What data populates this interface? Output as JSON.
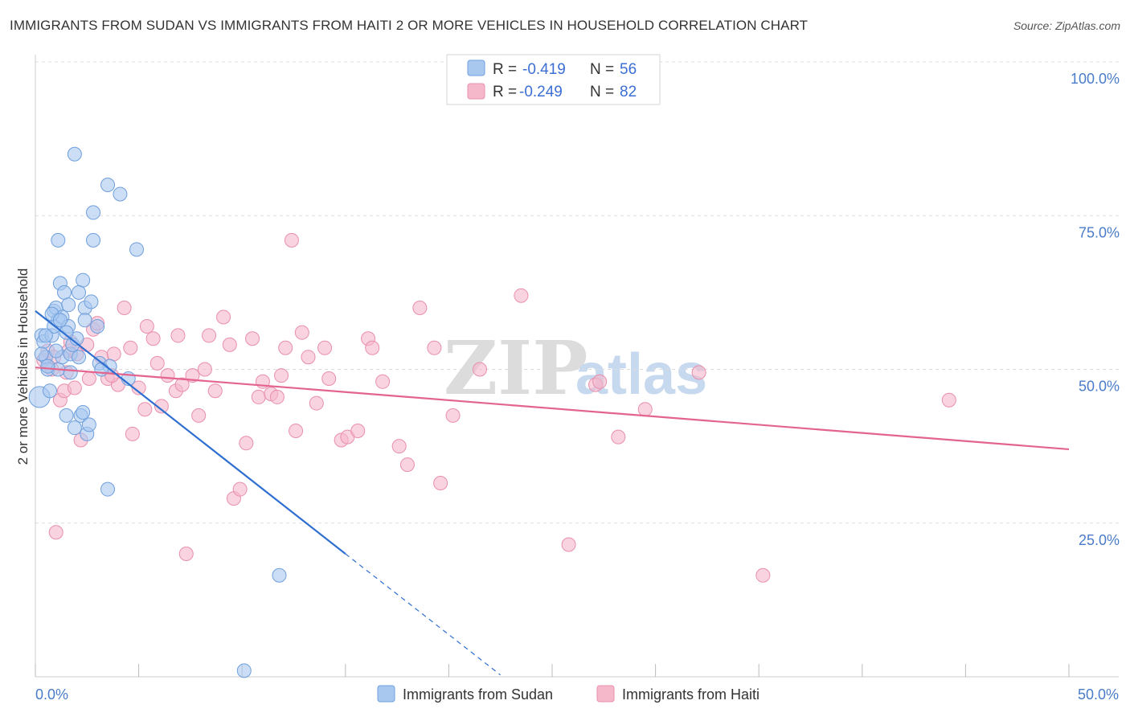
{
  "header": {
    "title": "IMMIGRANTS FROM SUDAN VS IMMIGRANTS FROM HAITI 2 OR MORE VEHICLES IN HOUSEHOLD CORRELATION CHART",
    "source": "Source: ZipAtlas.com"
  },
  "watermark": {
    "zip": "ZIP",
    "atlas": "atlas"
  },
  "legend": {
    "r_label": "R =",
    "n_label": "N =",
    "sudan": {
      "r": "-0.419",
      "n": "56"
    },
    "haiti": {
      "r": "-0.249",
      "n": "82"
    }
  },
  "colors": {
    "sudan_fill": "#a9c8f0",
    "sudan_stroke": "#6f9fdc",
    "sudan_line": "#2f6fd0",
    "haiti_fill": "#f5b8cb",
    "haiti_stroke": "#e98fab",
    "haiti_line": "#e2648f",
    "grid": "#dddddd",
    "tick_text": "#4a7cc9"
  },
  "chart_data": {
    "type": "scatter",
    "title": "IMMIGRANTS FROM SUDAN VS IMMIGRANTS FROM HAITI 2 OR MORE VEHICLES IN HOUSEHOLD CORRELATION CHART",
    "xlabel": "",
    "ylabel": "2 or more Vehicles in Household",
    "xlim": [
      0,
      50
    ],
    "ylim": [
      0,
      100
    ],
    "x_tick_labels": [
      "0.0%",
      "50.0%"
    ],
    "y_ticks": [
      25,
      50,
      75,
      100
    ],
    "y_tick_labels": [
      "25.0%",
      "50.0%",
      "75.0%",
      "100.0%"
    ],
    "grid": true,
    "legend_position": "top-center",
    "series": [
      {
        "name": "Immigrants from Sudan",
        "r": -0.419,
        "n": 56,
        "trend": {
          "x_start": 0,
          "y_start": 59.5,
          "x_solid_end": 15,
          "y_solid_end": 20.0,
          "x_dash_end": 22.5,
          "y_dash_end": 0.3
        },
        "points": [
          [
            0.2,
            45.5
          ],
          [
            0.3,
            55.5
          ],
          [
            0.4,
            54.5
          ],
          [
            0.5,
            52.0
          ],
          [
            0.6,
            50.0
          ],
          [
            0.7,
            46.5
          ],
          [
            0.8,
            55.5
          ],
          [
            0.9,
            57.0
          ],
          [
            0.9,
            59.5
          ],
          [
            1.0,
            60.0
          ],
          [
            1.1,
            58.0
          ],
          [
            1.1,
            50.0
          ],
          [
            1.2,
            64.0
          ],
          [
            1.3,
            58.5
          ],
          [
            1.3,
            52.0
          ],
          [
            1.4,
            62.5
          ],
          [
            1.5,
            42.5
          ],
          [
            1.6,
            57.0
          ],
          [
            1.6,
            60.5
          ],
          [
            1.7,
            52.5
          ],
          [
            1.7,
            49.5
          ],
          [
            1.8,
            54.0
          ],
          [
            1.9,
            40.5
          ],
          [
            2.0,
            55.0
          ],
          [
            1.9,
            85.0
          ],
          [
            2.1,
            52.0
          ],
          [
            2.2,
            42.5
          ],
          [
            2.3,
            43.0
          ],
          [
            2.3,
            64.5
          ],
          [
            2.4,
            60.0
          ],
          [
            2.5,
            39.5
          ],
          [
            2.6,
            41.0
          ],
          [
            2.7,
            61.0
          ],
          [
            2.8,
            75.5
          ],
          [
            3.0,
            57.0
          ],
          [
            2.8,
            71.0
          ],
          [
            3.5,
            80.0
          ],
          [
            4.1,
            78.5
          ],
          [
            4.9,
            69.5
          ],
          [
            1.1,
            71.0
          ],
          [
            3.1,
            51.0
          ],
          [
            3.5,
            30.5
          ],
          [
            3.6,
            50.5
          ],
          [
            4.5,
            48.5
          ],
          [
            11.8,
            16.5
          ],
          [
            10.1,
            1.0
          ],
          [
            0.3,
            52.5
          ],
          [
            0.5,
            55.5
          ],
          [
            0.6,
            50.5
          ],
          [
            0.8,
            59.0
          ],
          [
            1.0,
            53.0
          ],
          [
            1.2,
            58.0
          ],
          [
            1.5,
            56.0
          ],
          [
            2.1,
            62.5
          ],
          [
            2.4,
            58.0
          ],
          [
            3.2,
            50.0
          ]
        ]
      },
      {
        "name": "Immigrants from Haiti",
        "r": -0.249,
        "n": 82,
        "trend": {
          "x_start": 0,
          "y_start": 50.3,
          "x_end": 50,
          "y_end": 37.0
        },
        "points": [
          [
            0.4,
            51.5
          ],
          [
            0.6,
            53.0
          ],
          [
            0.9,
            52.0
          ],
          [
            1.0,
            23.5
          ],
          [
            1.2,
            45.0
          ],
          [
            1.4,
            46.5
          ],
          [
            1.6,
            53.0
          ],
          [
            1.7,
            54.5
          ],
          [
            1.9,
            47.0
          ],
          [
            2.0,
            52.5
          ],
          [
            2.2,
            38.5
          ],
          [
            2.5,
            54.0
          ],
          [
            2.8,
            56.5
          ],
          [
            3.0,
            57.5
          ],
          [
            3.2,
            52.0
          ],
          [
            3.5,
            48.5
          ],
          [
            3.8,
            52.5
          ],
          [
            4.0,
            47.5
          ],
          [
            4.3,
            60.0
          ],
          [
            4.6,
            53.5
          ],
          [
            4.7,
            39.5
          ],
          [
            5.0,
            47.0
          ],
          [
            5.3,
            43.5
          ],
          [
            5.4,
            57.0
          ],
          [
            5.7,
            55.0
          ],
          [
            5.9,
            51.0
          ],
          [
            6.1,
            44.0
          ],
          [
            6.4,
            49.0
          ],
          [
            6.8,
            46.5
          ],
          [
            6.9,
            55.5
          ],
          [
            7.1,
            47.5
          ],
          [
            7.3,
            20.0
          ],
          [
            7.6,
            49.0
          ],
          [
            7.9,
            42.5
          ],
          [
            8.2,
            50.0
          ],
          [
            8.4,
            55.5
          ],
          [
            8.7,
            46.5
          ],
          [
            9.1,
            58.5
          ],
          [
            9.4,
            54.0
          ],
          [
            9.6,
            29.0
          ],
          [
            9.9,
            30.5
          ],
          [
            10.2,
            38.0
          ],
          [
            10.5,
            55.0
          ],
          [
            10.8,
            45.5
          ],
          [
            11.0,
            48.0
          ],
          [
            11.4,
            46.0
          ],
          [
            11.7,
            45.5
          ],
          [
            11.9,
            49.0
          ],
          [
            12.1,
            53.5
          ],
          [
            12.4,
            71.0
          ],
          [
            12.6,
            40.0
          ],
          [
            12.9,
            56.0
          ],
          [
            13.2,
            52.0
          ],
          [
            13.6,
            44.5
          ],
          [
            14.0,
            53.5
          ],
          [
            14.2,
            48.5
          ],
          [
            14.8,
            38.5
          ],
          [
            15.1,
            39.0
          ],
          [
            15.6,
            40.0
          ],
          [
            16.1,
            55.0
          ],
          [
            16.3,
            53.5
          ],
          [
            16.8,
            48.0
          ],
          [
            17.6,
            37.5
          ],
          [
            18.0,
            34.5
          ],
          [
            18.6,
            60.0
          ],
          [
            19.3,
            53.5
          ],
          [
            19.6,
            31.5
          ],
          [
            20.2,
            42.5
          ],
          [
            21.5,
            50.0
          ],
          [
            23.5,
            62.0
          ],
          [
            25.8,
            21.5
          ],
          [
            27.1,
            47.5
          ],
          [
            27.3,
            48.0
          ],
          [
            28.2,
            39.0
          ],
          [
            29.5,
            43.5
          ],
          [
            32.1,
            49.5
          ],
          [
            35.2,
            16.5
          ],
          [
            44.2,
            45.0
          ],
          [
            0.8,
            50.0
          ],
          [
            1.5,
            49.5
          ],
          [
            2.6,
            48.5
          ],
          [
            3.7,
            49.0
          ]
        ]
      }
    ]
  },
  "bottom_legend": {
    "sudan_label": "Immigrants from Sudan",
    "haiti_label": "Immigrants from Haiti"
  }
}
